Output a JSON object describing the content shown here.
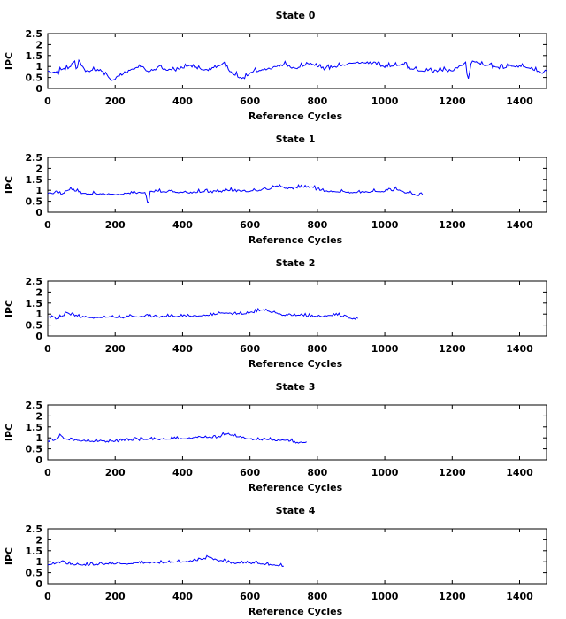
{
  "chart_data": [
    {
      "type": "line",
      "title": "State 0",
      "xlabel": "Reference Cycles",
      "ylabel": "IPC",
      "xlim": [
        0,
        1480
      ],
      "ylim": [
        0,
        2.5
      ],
      "x_ticks": [
        "0",
        "200",
        "400",
        "600",
        "800",
        "1000",
        "1200",
        "1400"
      ],
      "y_ticks": [
        "0",
        "0.5",
        "1",
        "1.5",
        "2",
        "2.5"
      ],
      "series": [
        {
          "color": "#0000ff",
          "x_end": 1480,
          "mean_ipc": 0.82,
          "noise_amplitude": 0.13,
          "points": [
            [
              0,
              0.8
            ],
            [
              10,
              0.72
            ],
            [
              20,
              0.75
            ],
            [
              30,
              0.7
            ],
            [
              40,
              0.85
            ],
            [
              60,
              0.9
            ],
            [
              70,
              1.05
            ],
            [
              80,
              1.25
            ],
            [
              85,
              0.9
            ],
            [
              95,
              1.2
            ],
            [
              110,
              0.8
            ],
            [
              150,
              0.82
            ],
            [
              175,
              0.62
            ],
            [
              185,
              0.45
            ],
            [
              195,
              0.4
            ],
            [
              210,
              0.55
            ],
            [
              250,
              0.85
            ],
            [
              280,
              1.0
            ],
            [
              300,
              0.75
            ],
            [
              340,
              0.9
            ],
            [
              380,
              0.8
            ],
            [
              420,
              1.05
            ],
            [
              460,
              0.85
            ],
            [
              500,
              0.95
            ],
            [
              520,
              1.15
            ],
            [
              555,
              0.6
            ],
            [
              585,
              0.45
            ],
            [
              600,
              0.7
            ],
            [
              640,
              0.85
            ],
            [
              700,
              1.1
            ],
            [
              740,
              0.9
            ],
            [
              780,
              1.15
            ],
            [
              820,
              0.85
            ],
            [
              900,
              1.15
            ],
            [
              950,
              1.2
            ],
            [
              1000,
              0.95
            ],
            [
              1050,
              1.1
            ],
            [
              1100,
              0.8
            ],
            [
              1200,
              0.8
            ],
            [
              1240,
              1.2
            ],
            [
              1246,
              0.35
            ],
            [
              1260,
              1.25
            ],
            [
              1300,
              1.05
            ],
            [
              1340,
              0.9
            ],
            [
              1400,
              1.05
            ],
            [
              1440,
              0.85
            ],
            [
              1465,
              0.7
            ],
            [
              1480,
              0.8
            ]
          ]
        }
      ]
    },
    {
      "type": "line",
      "title": "State 1",
      "xlabel": "Reference Cycles",
      "ylabel": "IPC",
      "xlim": [
        0,
        1480
      ],
      "ylim": [
        0,
        2.5
      ],
      "x_ticks": [
        "0",
        "200",
        "400",
        "600",
        "800",
        "1000",
        "1200",
        "1400"
      ],
      "y_ticks": [
        "0",
        "0.5",
        "1",
        "1.5",
        "2",
        "2.5"
      ],
      "series": [
        {
          "color": "#0000ff",
          "x_end": 1115,
          "mean_ipc": 0.85,
          "noise_amplitude": 0.09,
          "points": [
            [
              0,
              0.85
            ],
            [
              20,
              0.9
            ],
            [
              40,
              0.8
            ],
            [
              60,
              1.0
            ],
            [
              70,
              1.05
            ],
            [
              100,
              0.85
            ],
            [
              200,
              0.8
            ],
            [
              290,
              0.9
            ],
            [
              298,
              0.3
            ],
            [
              305,
              0.95
            ],
            [
              400,
              0.9
            ],
            [
              500,
              0.95
            ],
            [
              550,
              1.0
            ],
            [
              600,
              0.95
            ],
            [
              650,
              1.05
            ],
            [
              680,
              1.2
            ],
            [
              720,
              1.1
            ],
            [
              780,
              1.15
            ],
            [
              820,
              0.95
            ],
            [
              900,
              0.9
            ],
            [
              1000,
              0.95
            ],
            [
              1030,
              1.05
            ],
            [
              1080,
              0.85
            ],
            [
              1100,
              0.75
            ],
            [
              1115,
              0.78
            ]
          ]
        }
      ]
    },
    {
      "type": "line",
      "title": "State 2",
      "xlabel": "Reference Cycles",
      "ylabel": "IPC",
      "xlim": [
        0,
        1480
      ],
      "ylim": [
        0,
        2.5
      ],
      "x_ticks": [
        "0",
        "200",
        "400",
        "600",
        "800",
        "1000",
        "1200",
        "1400"
      ],
      "y_ticks": [
        "0",
        "0.5",
        "1",
        "1.5",
        "2",
        "2.5"
      ],
      "series": [
        {
          "color": "#0000ff",
          "x_end": 920,
          "mean_ipc": 0.87,
          "noise_amplitude": 0.08,
          "points": [
            [
              0,
              0.85
            ],
            [
              30,
              0.8
            ],
            [
              60,
              1.05
            ],
            [
              70,
              0.95
            ],
            [
              100,
              0.85
            ],
            [
              200,
              0.85
            ],
            [
              300,
              0.9
            ],
            [
              400,
              0.9
            ],
            [
              480,
              0.95
            ],
            [
              520,
              1.05
            ],
            [
              580,
              1.0
            ],
            [
              640,
              1.2
            ],
            [
              660,
              1.1
            ],
            [
              700,
              0.95
            ],
            [
              800,
              0.9
            ],
            [
              860,
              0.95
            ],
            [
              900,
              0.8
            ],
            [
              920,
              0.8
            ]
          ]
        }
      ]
    },
    {
      "type": "line",
      "title": "State 3",
      "xlabel": "Reference Cycles",
      "ylabel": "IPC",
      "xlim": [
        0,
        1480
      ],
      "ylim": [
        0,
        2.5
      ],
      "x_ticks": [
        "0",
        "200",
        "400",
        "600",
        "800",
        "1000",
        "1200",
        "1400"
      ],
      "y_ticks": [
        "0",
        "0.5",
        "1",
        "1.5",
        "2",
        "2.5"
      ],
      "series": [
        {
          "color": "#0000ff",
          "x_end": 770,
          "mean_ipc": 0.88,
          "noise_amplitude": 0.08,
          "points": [
            [
              0,
              0.85
            ],
            [
              20,
              0.9
            ],
            [
              40,
              1.1
            ],
            [
              50,
              0.95
            ],
            [
              100,
              0.85
            ],
            [
              200,
              0.85
            ],
            [
              300,
              0.95
            ],
            [
              400,
              0.95
            ],
            [
              450,
              1.05
            ],
            [
              500,
              1.0
            ],
            [
              530,
              1.2
            ],
            [
              560,
              1.05
            ],
            [
              600,
              0.95
            ],
            [
              700,
              0.9
            ],
            [
              740,
              0.8
            ],
            [
              770,
              0.8
            ]
          ]
        }
      ]
    },
    {
      "type": "line",
      "title": "State 4",
      "xlabel": "Reference Cycles",
      "ylabel": "IPC",
      "xlim": [
        0,
        1480
      ],
      "ylim": [
        0,
        2.5
      ],
      "x_ticks": [
        "0",
        "200",
        "400",
        "600",
        "800",
        "1000",
        "1200",
        "1400"
      ],
      "y_ticks": [
        "0",
        "0.5",
        "1",
        "1.5",
        "2",
        "2.5"
      ],
      "series": [
        {
          "color": "#0000ff",
          "x_end": 700,
          "mean_ipc": 0.88,
          "noise_amplitude": 0.08,
          "points": [
            [
              0,
              0.85
            ],
            [
              20,
              0.9
            ],
            [
              45,
              1.05
            ],
            [
              55,
              0.9
            ],
            [
              100,
              0.85
            ],
            [
              200,
              0.9
            ],
            [
              300,
              0.95
            ],
            [
              400,
              1.0
            ],
            [
              430,
              1.05
            ],
            [
              480,
              1.2
            ],
            [
              500,
              1.1
            ],
            [
              550,
              0.95
            ],
            [
              600,
              0.95
            ],
            [
              670,
              0.85
            ],
            [
              700,
              0.8
            ]
          ]
        }
      ]
    }
  ]
}
